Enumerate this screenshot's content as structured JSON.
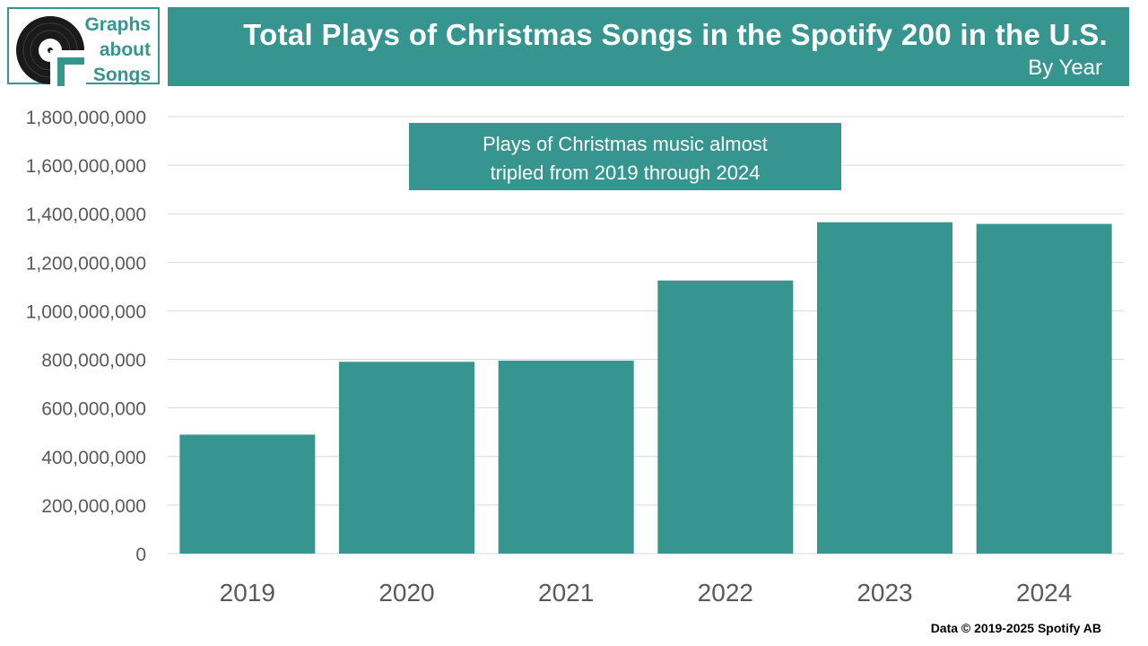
{
  "logo": {
    "lines": [
      "Graphs",
      "about",
      "Songs"
    ]
  },
  "header": {
    "title": "Total Plays of Christmas Songs in the Spotify 200 in the U.S.",
    "subtitle": "By Year"
  },
  "annotation": {
    "lines": [
      "Plays of Christmas music almost",
      "tripled from 2019 through 2024"
    ]
  },
  "footer": {
    "credit": "Data © 2019-2025 Spotify AB"
  },
  "colors": {
    "accent": "#36958e",
    "bar": "#36958e",
    "grid": "#d9d9d9",
    "tick_text": "#595959",
    "annotation_text": "#ffffff"
  },
  "chart_data": {
    "type": "bar",
    "title": "Total Plays of Christmas Songs in the Spotify 200 in the U.S.",
    "subtitle": "By Year",
    "xlabel": "",
    "ylabel": "",
    "categories": [
      "2019",
      "2020",
      "2021",
      "2022",
      "2023",
      "2024"
    ],
    "values": [
      490000000,
      790000000,
      795000000,
      1125000000,
      1365000000,
      1358000000
    ],
    "ylim": [
      0,
      1800000000
    ],
    "yticks": [
      0,
      200000000,
      400000000,
      600000000,
      800000000,
      1000000000,
      1200000000,
      1400000000,
      1600000000,
      1800000000
    ],
    "ytick_labels": [
      "0",
      "200,000,000",
      "400,000,000",
      "600,000,000",
      "800,000,000",
      "1,000,000,000",
      "1,200,000,000",
      "1,400,000,000",
      "1,600,000,000",
      "1,800,000,000"
    ],
    "grid": true,
    "legend": "none",
    "annotations": [
      "Plays of Christmas music almost tripled from 2019 through 2024"
    ]
  }
}
